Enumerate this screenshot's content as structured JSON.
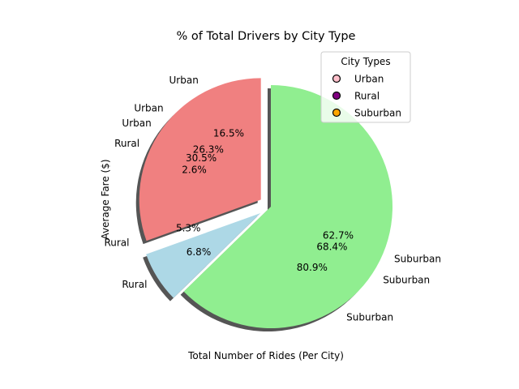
{
  "chart_data": {
    "type": "pie",
    "title": "% of Total Drivers by City Type",
    "xlabel": "Total Number of Rides (Per City)",
    "ylabel": "Average Fare ($)",
    "legend": {
      "title": "City Types",
      "placement": "top-right",
      "entries": [
        {
          "label": "Urban",
          "color": "#ffc0cb"
        },
        {
          "label": "Rural",
          "color": "#800080"
        },
        {
          "label": "Suburban",
          "color": "#ffa500"
        }
      ]
    },
    "categories": [
      "Urban",
      "Rural",
      "Suburban"
    ],
    "colors": [
      "#f08080",
      "#add8e6",
      "#90ee90"
    ],
    "explode": [
      0.1,
      0.1,
      0
    ],
    "shadow": true,
    "start_angle": 90,
    "overlaid_pies": [
      {
        "values": [
          16.5,
          2.6,
          80.9
        ],
        "labels": [
          "16.5%",
          "2.6%",
          "80.9%"
        ],
        "draw_wedges": false
      },
      {
        "values": [
          26.3,
          5.3,
          68.4
        ],
        "labels": [
          "26.3%",
          "5.3%",
          "68.4%"
        ],
        "draw_wedges": false
      },
      {
        "values": [
          30.5,
          6.8,
          62.7
        ],
        "labels": [
          "30.5%",
          "6.8%",
          "62.7%"
        ],
        "draw_wedges": true
      }
    ]
  }
}
